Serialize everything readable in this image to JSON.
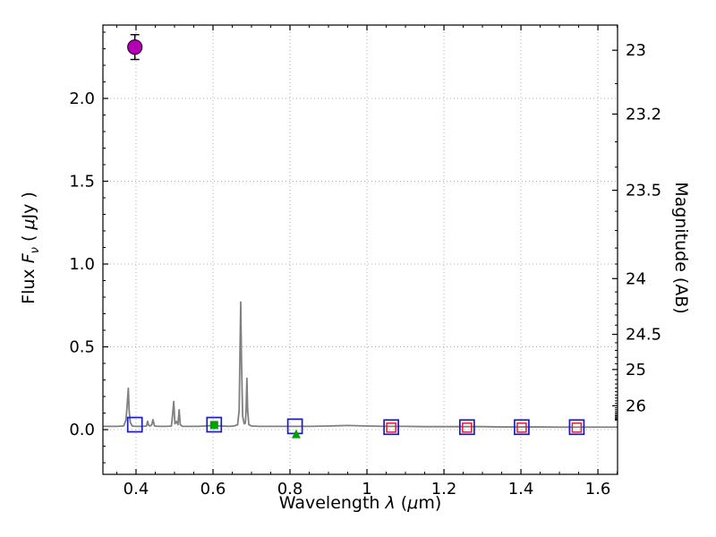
{
  "figure": {
    "background": "#ffffff"
  },
  "chart_data": {
    "type": "line",
    "title": "",
    "xlabel": {
      "prefix": "Wavelength ",
      "symbol": "λ",
      "units_pre": " (",
      "units_mu": "μ",
      "units_post": "m)"
    },
    "ylabel_left": {
      "prefix": "Flux ",
      "symbol": "F",
      "subscript": "ν",
      "units_pre": " ( ",
      "units_mu": "μ",
      "units_post": "Jy )"
    },
    "ylabel_right": "Magnitude (AB)",
    "xlim": [
      0.314,
      1.651
    ],
    "ylim": [
      -0.27,
      2.443
    ],
    "grid": true,
    "legend": "none",
    "x_ticks": [
      0.4,
      0.6,
      0.8,
      1.0,
      1.2,
      1.4,
      1.6
    ],
    "x_tick_labels": [
      "0.4",
      "0.6",
      "0.8",
      "1",
      "1.2",
      "1.4",
      "1.6"
    ],
    "y_ticks_left": [
      0.0,
      0.5,
      1.0,
      1.5,
      2.0
    ],
    "y_tick_labels_left": [
      "0.0",
      "0.5",
      "1.0",
      "1.5",
      "2.0"
    ],
    "y_ticks_right_mag": [
      23,
      23.2,
      23.5,
      24,
      24.5,
      25,
      26
    ],
    "y_tick_labels_right": [
      "23",
      "23.2",
      "23.5",
      "24",
      "24.5",
      "25",
      "26"
    ],
    "mag_zeropoint": 23.9,
    "colors": {
      "grid": "#b0b0b0",
      "spectrum": "#808080",
      "model_photometry": "#1a1ac8",
      "detection": "#b400b4",
      "detection_edge": "#3c003c",
      "errorbar": "#000000",
      "green": "#00a000",
      "red": "#dc1e32"
    },
    "series": [
      {
        "name": "model-spectrum",
        "type": "line",
        "color": "#808080",
        "width": 1.8,
        "x": [
          0.314,
          0.33,
          0.35,
          0.368,
          0.374,
          0.377,
          0.38,
          0.382,
          0.385,
          0.39,
          0.4,
          0.415,
          0.427,
          0.43,
          0.433,
          0.437,
          0.441,
          0.444,
          0.448,
          0.46,
          0.48,
          0.492,
          0.495,
          0.498,
          0.501,
          0.505,
          0.509,
          0.512,
          0.515,
          0.52,
          0.54,
          0.56,
          0.58,
          0.6,
          0.62,
          0.64,
          0.655,
          0.664,
          0.668,
          0.67,
          0.672,
          0.674,
          0.677,
          0.681,
          0.684,
          0.686,
          0.688,
          0.69,
          0.693,
          0.7,
          0.72,
          0.75,
          0.8,
          0.85,
          0.9,
          0.95,
          1.0,
          1.05,
          1.1,
          1.15,
          1.2,
          1.25,
          1.3,
          1.35,
          1.4,
          1.45,
          1.5,
          1.55,
          1.6,
          1.651
        ],
        "y": [
          0.02,
          0.02,
          0.02,
          0.022,
          0.06,
          0.15,
          0.25,
          0.12,
          0.045,
          0.022,
          0.02,
          0.02,
          0.022,
          0.05,
          0.025,
          0.022,
          0.03,
          0.06,
          0.022,
          0.02,
          0.02,
          0.022,
          0.09,
          0.17,
          0.035,
          0.05,
          0.03,
          0.12,
          0.03,
          0.02,
          0.02,
          0.02,
          0.022,
          0.025,
          0.022,
          0.02,
          0.022,
          0.03,
          0.12,
          0.45,
          0.77,
          0.42,
          0.08,
          0.035,
          0.04,
          0.12,
          0.31,
          0.12,
          0.03,
          0.022,
          0.02,
          0.02,
          0.02,
          0.02,
          0.022,
          0.025,
          0.022,
          0.02,
          0.02,
          0.018,
          0.018,
          0.018,
          0.018,
          0.016,
          0.016,
          0.016,
          0.015,
          0.015,
          0.015,
          0.015
        ]
      },
      {
        "name": "model-photometry-squares",
        "type": "scatter",
        "marker": "open-square",
        "color": "#1a1ac8",
        "size": 16,
        "stroke_width": 1.7,
        "x": [
          0.397,
          0.603,
          0.813,
          1.063,
          1.26,
          1.402,
          1.545
        ],
        "y": [
          0.03,
          0.03,
          0.02,
          0.015,
          0.015,
          0.015,
          0.015
        ]
      },
      {
        "name": "observed-detection-circle",
        "type": "scatter",
        "marker": "circle",
        "color": "#b400b4",
        "edge": "#3c003c",
        "size": 16,
        "x": [
          0.397
        ],
        "y": [
          2.31
        ],
        "yerr": [
          0.075
        ]
      },
      {
        "name": "observed-green-square",
        "type": "scatter",
        "marker": "square",
        "color": "#00a000",
        "size": 9,
        "x": [
          0.603
        ],
        "y": [
          0.028
        ]
      },
      {
        "name": "observed-green-triangle",
        "type": "scatter",
        "marker": "triangle-up",
        "color": "#00a000",
        "size": 10,
        "x": [
          0.816
        ],
        "y": [
          -0.025
        ]
      },
      {
        "name": "observed-red-squares",
        "type": "scatter",
        "marker": "open-square",
        "color": "#dc1e32",
        "size": 10,
        "stroke_width": 1.5,
        "x": [
          1.063,
          1.26,
          1.402,
          1.545
        ],
        "y": [
          0.012,
          0.012,
          0.012,
          0.012
        ]
      }
    ]
  }
}
